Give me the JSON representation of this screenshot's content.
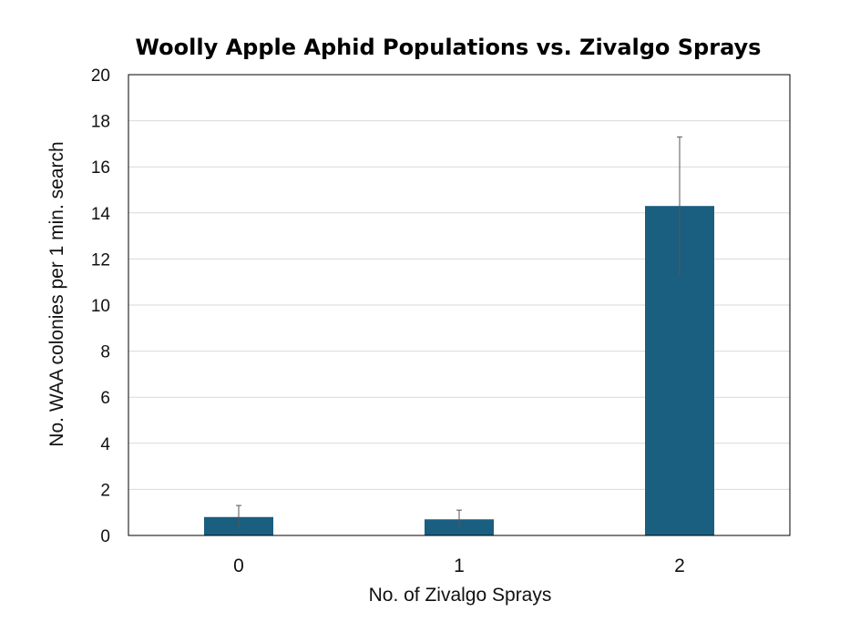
{
  "chart_data": {
    "type": "bar",
    "title": "Woolly Apple Aphid Populations  vs. Zivalgo Sprays",
    "xlabel": "No. of Zivalgo Sprays",
    "ylabel": "No. WAA colonies per 1 min. search",
    "categories": [
      "0",
      "1",
      "2"
    ],
    "values": [
      0.8,
      0.7,
      14.3
    ],
    "error": [
      0.5,
      0.4,
      3.0
    ],
    "ylim": [
      0,
      20
    ],
    "yticks": [
      "0",
      "2",
      "4",
      "6",
      "8",
      "10",
      "12",
      "14",
      "16",
      "18",
      "20"
    ],
    "grid": true,
    "legend": "none",
    "bar_color": "#1a5e80",
    "error_color": "#555555"
  }
}
